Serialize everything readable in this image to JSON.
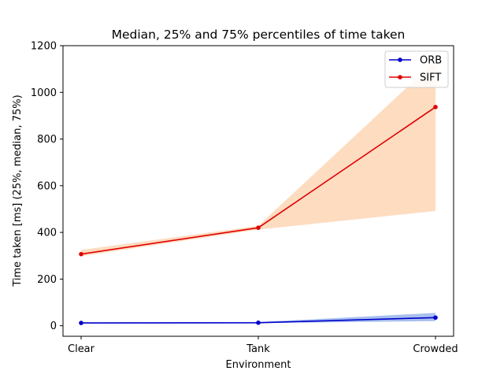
{
  "chart_data": {
    "type": "line",
    "title": "Median, 25% and 75% percentiles of time taken",
    "xlabel": "Environment",
    "ylabel": "Time taken [ms] (25%, median, 75%)",
    "categories": [
      "Clear",
      "Tank",
      "Crowded"
    ],
    "ylim": [
      -45,
      1200
    ],
    "yticks": [
      0,
      200,
      400,
      600,
      800,
      1000,
      1200
    ],
    "legend_position": "top-right",
    "grid": false,
    "series": [
      {
        "name": "ORB",
        "color": "#0000cc",
        "band_color": "#a8c0ee",
        "median": [
          12,
          13,
          35
        ],
        "p25": [
          10,
          11,
          20
        ],
        "p75": [
          14,
          16,
          55
        ]
      },
      {
        "name": "SIFT",
        "color": "#e00000",
        "band_color": "#fddcc0",
        "median": [
          307,
          420,
          937
        ],
        "p25": [
          298,
          412,
          492
        ],
        "p75": [
          325,
          428,
          1135
        ]
      }
    ]
  }
}
